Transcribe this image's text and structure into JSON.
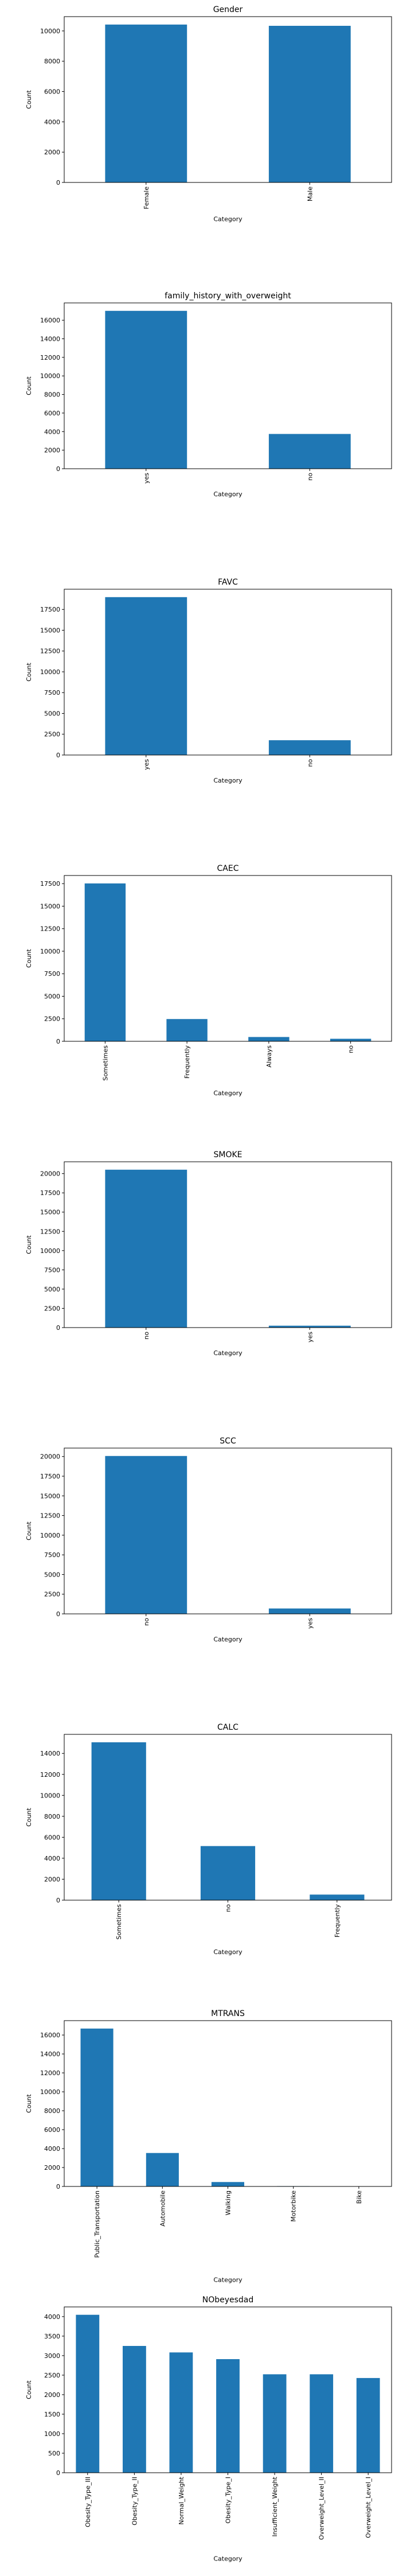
{
  "chart_data": [
    {
      "type": "bar",
      "title": "Gender",
      "xlabel": "Category",
      "ylabel": "Count",
      "categories": [
        "Female",
        "Male"
      ],
      "values": [
        10422,
        10336
      ],
      "ylim": [
        0,
        10943
      ],
      "yticks": [
        0,
        2000,
        4000,
        6000,
        8000,
        10000
      ],
      "color": "#1f77b4",
      "grid": false
    },
    {
      "type": "bar",
      "title": "family_history_with_overweight",
      "xlabel": "Category",
      "ylabel": "Count",
      "categories": [
        "yes",
        "no"
      ],
      "values": [
        17014,
        3744
      ],
      "ylim": [
        0,
        17865
      ],
      "yticks": [
        0,
        2000,
        4000,
        6000,
        8000,
        10000,
        12000,
        14000,
        16000
      ],
      "color": "#1f77b4",
      "grid": false
    },
    {
      "type": "bar",
      "title": "FAVC",
      "xlabel": "Category",
      "ylabel": "Count",
      "categories": [
        "yes",
        "no"
      ],
      "values": [
        18982,
        1776
      ],
      "ylim": [
        0,
        19931
      ],
      "yticks": [
        0,
        2500,
        5000,
        7500,
        10000,
        12500,
        15000,
        17500
      ],
      "color": "#1f77b4",
      "grid": false
    },
    {
      "type": "bar",
      "title": "CAEC",
      "xlabel": "Category",
      "ylabel": "Count",
      "categories": [
        "Sometimes",
        "Frequently",
        "Always",
        "no"
      ],
      "values": [
        17529,
        2472,
        478,
        279
      ],
      "ylim": [
        0,
        18405
      ],
      "yticks": [
        0,
        2500,
        5000,
        7500,
        10000,
        12500,
        15000,
        17500
      ],
      "color": "#1f77b4",
      "grid": false
    },
    {
      "type": "bar",
      "title": "SMOKE",
      "xlabel": "Category",
      "ylabel": "Count",
      "categories": [
        "no",
        "yes"
      ],
      "values": [
        20513,
        245
      ],
      "ylim": [
        0,
        21539
      ],
      "yticks": [
        0,
        2500,
        5000,
        7500,
        10000,
        12500,
        15000,
        17500,
        20000
      ],
      "color": "#1f77b4",
      "grid": false
    },
    {
      "type": "bar",
      "title": "SCC",
      "xlabel": "Category",
      "ylabel": "Count",
      "categories": [
        "no",
        "yes"
      ],
      "values": [
        20071,
        687
      ],
      "ylim": [
        0,
        21075
      ],
      "yticks": [
        0,
        2500,
        5000,
        7500,
        10000,
        12500,
        15000,
        17500,
        20000
      ],
      "color": "#1f77b4",
      "grid": false
    },
    {
      "type": "bar",
      "title": "CALC",
      "xlabel": "Category",
      "ylabel": "Count",
      "categories": [
        "Sometimes",
        "no",
        "Frequently"
      ],
      "values": [
        15066,
        5163,
        529
      ],
      "ylim": [
        0,
        15819
      ],
      "yticks": [
        0,
        2000,
        4000,
        6000,
        8000,
        10000,
        12000,
        14000
      ],
      "color": "#1f77b4",
      "grid": false
    },
    {
      "type": "bar",
      "title": "MTRANS",
      "xlabel": "Category",
      "ylabel": "Count",
      "categories": [
        "Public_Transportation",
        "Automobile",
        "Walking",
        "Motorbike",
        "Bike"
      ],
      "values": [
        16687,
        3534,
        467,
        38,
        32
      ],
      "ylim": [
        0,
        17521
      ],
      "yticks": [
        0,
        2000,
        4000,
        6000,
        8000,
        10000,
        12000,
        14000,
        16000
      ],
      "color": "#1f77b4",
      "grid": false
    },
    {
      "type": "bar",
      "title": "NObeyesdad",
      "xlabel": "Category",
      "ylabel": "Count",
      "categories": [
        "Obesity_Type_III",
        "Obesity_Type_II",
        "Normal_Weight",
        "Obesity_Type_I",
        "Insufficient_Weight",
        "Overweight_Level_II",
        "Overweight_Level_I"
      ],
      "values": [
        4046,
        3248,
        3082,
        2910,
        2523,
        2522,
        2427
      ],
      "ylim": [
        0,
        4248
      ],
      "yticks": [
        0,
        500,
        1000,
        1500,
        2000,
        2500,
        3000,
        3500,
        4000
      ],
      "color": "#1f77b4",
      "grid": false
    }
  ]
}
